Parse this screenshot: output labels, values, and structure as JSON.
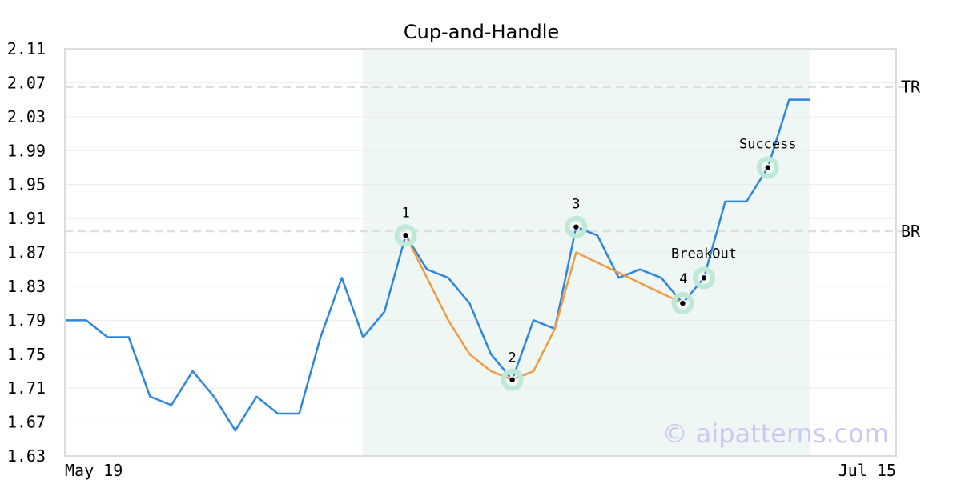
{
  "chart_data": {
    "type": "line",
    "title": "Cup-and-Handle",
    "xlabel": "",
    "ylabel": "",
    "x_ticks": [
      "May 19",
      "Jul 15"
    ],
    "y_ticks": [
      "2.11",
      "2.07",
      "2.03",
      "1.99",
      "1.95",
      "1.91",
      "1.87",
      "1.83",
      "1.79",
      "1.75",
      "1.71",
      "1.67",
      "1.63"
    ],
    "ylim": [
      1.63,
      2.11
    ],
    "grid": true,
    "legend": "none",
    "series": [
      {
        "color": "#2e86de",
        "values": [
          1.79,
          1.79,
          1.77,
          1.77,
          1.7,
          1.69,
          1.73,
          1.7,
          1.66,
          1.7,
          1.68,
          1.68,
          1.77,
          1.84,
          1.77,
          1.8,
          1.89,
          1.85,
          1.84,
          1.81,
          1.75,
          1.72,
          1.79,
          1.78,
          1.9,
          1.89,
          1.84,
          1.85,
          1.84,
          1.81,
          1.84,
          1.93,
          1.93,
          1.97,
          2.05,
          2.05
        ]
      },
      {
        "color": "#f39a45",
        "points": [
          [
            16,
            1.89
          ],
          [
            18,
            1.79
          ],
          [
            19,
            1.75
          ],
          [
            20,
            1.73
          ],
          [
            21,
            1.72
          ],
          [
            22,
            1.73
          ],
          [
            23,
            1.78
          ],
          [
            24,
            1.87
          ],
          [
            29,
            1.81
          ]
        ]
      }
    ],
    "reference_lines": [
      {
        "label": "TR",
        "value": 2.065
      },
      {
        "label": "BR",
        "value": 1.895
      }
    ],
    "highlight_range": {
      "start_index": 14,
      "end_index": 35,
      "color": "#eef7f3"
    },
    "markers": [
      {
        "label": "1",
        "index": 16,
        "value": 1.89
      },
      {
        "label": "2",
        "index": 21,
        "value": 1.72
      },
      {
        "label": "3",
        "index": 24,
        "value": 1.9
      },
      {
        "label": "4",
        "index": 29,
        "value": 1.81
      },
      {
        "label": "BreakOut",
        "index": 30,
        "value": 1.84
      },
      {
        "label": "Success",
        "index": 33,
        "value": 1.97
      }
    ],
    "watermark": "© aipatterns.com"
  }
}
